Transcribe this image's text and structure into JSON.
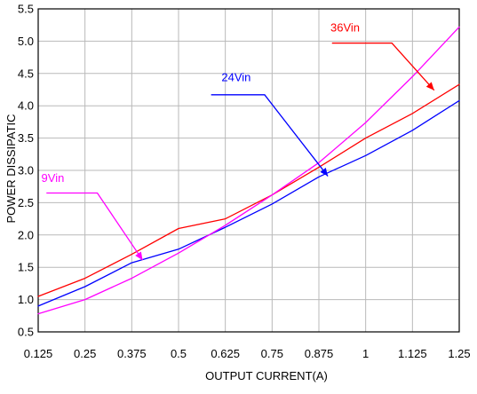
{
  "chart_data": {
    "type": "line",
    "title": "",
    "xlabel": "OUTPUT CURRENT(A)",
    "ylabel": "POWER DISSIPATIC",
    "xlim": [
      0.125,
      1.25
    ],
    "ylim": [
      0.5,
      5.5
    ],
    "x_ticks": [
      "0.125",
      "0.25",
      "0.375",
      "0.5",
      "0.625",
      "0.75",
      "0.875",
      "1",
      "1.125",
      "1.25"
    ],
    "y_ticks": [
      "0.5",
      "1.0",
      "1.5",
      "2.0",
      "2.5",
      "3.0",
      "3.5",
      "4.0",
      "4.5",
      "5.0",
      "5.5"
    ],
    "grid": true,
    "series": [
      {
        "name": "36Vin",
        "color": "#ff0000",
        "points": [
          [
            0.125,
            1.05
          ],
          [
            0.25,
            1.33
          ],
          [
            0.375,
            1.7
          ],
          [
            0.5,
            2.1
          ],
          [
            0.625,
            2.25
          ],
          [
            0.75,
            2.62
          ],
          [
            0.875,
            3.05
          ],
          [
            1.0,
            3.5
          ],
          [
            1.125,
            3.88
          ],
          [
            1.25,
            4.33
          ]
        ]
      },
      {
        "name": "24Vin",
        "color": "#0000ff",
        "points": [
          [
            0.125,
            0.9
          ],
          [
            0.25,
            1.2
          ],
          [
            0.375,
            1.57
          ],
          [
            0.5,
            1.78
          ],
          [
            0.625,
            2.12
          ],
          [
            0.75,
            2.48
          ],
          [
            0.875,
            2.9
          ],
          [
            1.0,
            3.23
          ],
          [
            1.125,
            3.62
          ],
          [
            1.25,
            4.08
          ]
        ]
      },
      {
        "name": "9Vin",
        "color": "#ff00ff",
        "points": [
          [
            0.125,
            0.78
          ],
          [
            0.25,
            1.0
          ],
          [
            0.375,
            1.33
          ],
          [
            0.5,
            1.72
          ],
          [
            0.625,
            2.15
          ],
          [
            0.75,
            2.62
          ],
          [
            0.875,
            3.12
          ],
          [
            1.0,
            3.74
          ],
          [
            1.125,
            4.45
          ],
          [
            1.25,
            5.22
          ]
        ]
      }
    ],
    "annotations": [
      {
        "text": "36Vin",
        "color": "#ff0000",
        "label_at": [
          0.945,
          5.15
        ],
        "leader_from": [
          0.91,
          4.97
        ],
        "leader_corner": [
          1.07,
          4.97
        ],
        "arrow_to": [
          1.183,
          4.24
        ]
      },
      {
        "text": "24Vin",
        "color": "#0000ff",
        "label_at": [
          0.654,
          4.38
        ],
        "leader_from": [
          0.587,
          4.17
        ],
        "leader_corner": [
          0.73,
          4.17
        ],
        "arrow_to": [
          0.899,
          2.91
        ]
      },
      {
        "text": "9Vin",
        "color": "#ff00ff",
        "label_at": [
          0.164,
          2.82
        ],
        "leader_from": [
          0.147,
          2.65
        ],
        "leader_corner": [
          0.283,
          2.65
        ],
        "arrow_to": [
          0.404,
          1.61
        ]
      }
    ]
  }
}
